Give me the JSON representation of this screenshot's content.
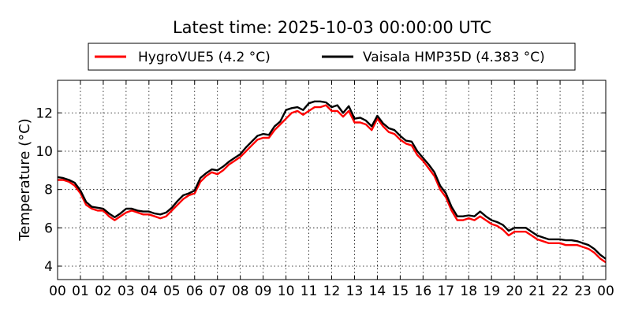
{
  "chart_data": {
    "type": "line",
    "title": "Latest time: 2025-10-03 00:00:00 UTC",
    "xlabel": "",
    "ylabel": "Temperature (°C)",
    "xlim": [
      0,
      24
    ],
    "ylim": [
      3.3,
      13.7
    ],
    "x_ticks": [
      "00",
      "01",
      "02",
      "03",
      "04",
      "05",
      "06",
      "07",
      "08",
      "09",
      "10",
      "11",
      "12",
      "13",
      "14",
      "15",
      "16",
      "17",
      "18",
      "19",
      "20",
      "21",
      "22",
      "23",
      "00"
    ],
    "y_ticks": [
      4,
      6,
      8,
      10,
      12
    ],
    "grid": true,
    "legend_position": "top-center",
    "x": [
      0,
      0.25,
      0.5,
      0.75,
      1,
      1.25,
      1.5,
      1.75,
      2,
      2.25,
      2.5,
      2.75,
      3,
      3.25,
      3.5,
      3.75,
      4,
      4.25,
      4.5,
      4.75,
      5,
      5.25,
      5.5,
      5.75,
      6,
      6.25,
      6.5,
      6.75,
      7,
      7.25,
      7.5,
      7.75,
      8,
      8.25,
      8.5,
      8.75,
      9,
      9.25,
      9.5,
      9.75,
      10,
      10.25,
      10.5,
      10.75,
      11,
      11.25,
      11.5,
      11.75,
      12,
      12.25,
      12.5,
      12.75,
      13,
      13.25,
      13.5,
      13.75,
      14,
      14.25,
      14.5,
      14.75,
      15,
      15.25,
      15.5,
      15.75,
      16,
      16.25,
      16.5,
      16.75,
      17,
      17.25,
      17.5,
      17.75,
      18,
      18.25,
      18.5,
      18.75,
      19,
      19.25,
      19.5,
      19.75,
      20,
      20.25,
      20.5,
      20.75,
      21,
      21.25,
      21.5,
      21.75,
      22,
      22.25,
      22.5,
      22.75,
      23,
      23.25,
      23.5,
      23.75,
      24
    ],
    "series": [
      {
        "name": "HygroVUE5 (4.2 °C)",
        "color": "#ff0000",
        "values": [
          8.5,
          8.5,
          8.4,
          8.2,
          7.8,
          7.2,
          7.0,
          6.9,
          6.9,
          6.6,
          6.4,
          6.6,
          6.8,
          6.9,
          6.8,
          6.7,
          6.7,
          6.6,
          6.5,
          6.6,
          6.9,
          7.2,
          7.5,
          7.7,
          7.8,
          8.4,
          8.7,
          8.9,
          8.8,
          9.0,
          9.3,
          9.5,
          9.7,
          10.0,
          10.3,
          10.6,
          10.7,
          10.7,
          11.1,
          11.4,
          11.7,
          12.0,
          12.1,
          11.9,
          12.1,
          12.3,
          12.3,
          12.4,
          12.1,
          12.1,
          11.8,
          12.1,
          11.5,
          11.5,
          11.4,
          11.1,
          11.7,
          11.3,
          11.0,
          10.9,
          10.6,
          10.4,
          10.3,
          9.8,
          9.5,
          9.1,
          8.7,
          8.0,
          7.6,
          6.9,
          6.4,
          6.4,
          6.5,
          6.4,
          6.6,
          6.4,
          6.2,
          6.1,
          5.9,
          5.6,
          5.8,
          5.8,
          5.8,
          5.6,
          5.4,
          5.3,
          5.2,
          5.2,
          5.2,
          5.1,
          5.1,
          5.1,
          5.0,
          4.9,
          4.7,
          4.4,
          4.2
        ]
      },
      {
        "name": "Vaisala HMP35D (4.383 °C)",
        "color": "#000000",
        "values": [
          8.65,
          8.6,
          8.5,
          8.35,
          7.95,
          7.35,
          7.1,
          7.05,
          7.0,
          6.75,
          6.55,
          6.75,
          7.0,
          7.0,
          6.9,
          6.85,
          6.85,
          6.75,
          6.7,
          6.8,
          7.05,
          7.4,
          7.7,
          7.8,
          7.95,
          8.6,
          8.85,
          9.05,
          9.0,
          9.2,
          9.45,
          9.65,
          9.85,
          10.2,
          10.5,
          10.8,
          10.9,
          10.85,
          11.3,
          11.55,
          12.15,
          12.25,
          12.3,
          12.15,
          12.5,
          12.6,
          12.6,
          12.55,
          12.3,
          12.4,
          12.0,
          12.35,
          11.7,
          11.75,
          11.6,
          11.3,
          11.85,
          11.45,
          11.2,
          11.1,
          10.8,
          10.55,
          10.5,
          10.0,
          9.65,
          9.3,
          8.9,
          8.2,
          7.8,
          7.1,
          6.6,
          6.6,
          6.65,
          6.6,
          6.85,
          6.6,
          6.4,
          6.3,
          6.15,
          5.85,
          6.0,
          6.0,
          6.0,
          5.8,
          5.6,
          5.5,
          5.4,
          5.4,
          5.4,
          5.35,
          5.35,
          5.3,
          5.2,
          5.1,
          4.9,
          4.6,
          4.383
        ]
      }
    ]
  }
}
